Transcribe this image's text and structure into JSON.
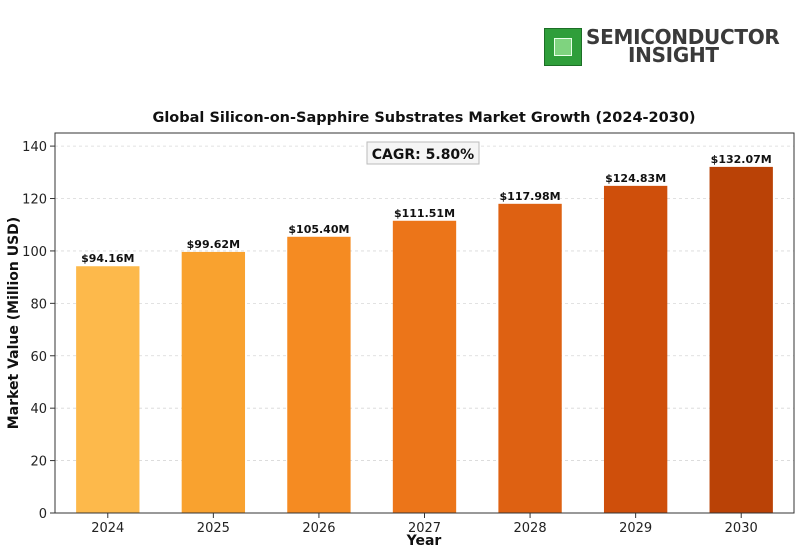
{
  "brand": {
    "line1": "SEMICONDUCTOR",
    "line2": "INSIGHT",
    "icon": "chip-icon",
    "color": "#3a3a3a"
  },
  "chart_data": {
    "type": "bar",
    "title": "Global Silicon-on-Sapphire Substrates Market Growth (2024-2030)",
    "xlabel": "Year",
    "ylabel": "Market Value (Million USD)",
    "categories": [
      "2024",
      "2025",
      "2026",
      "2027",
      "2028",
      "2029",
      "2030"
    ],
    "values": [
      94.16,
      99.62,
      105.4,
      111.51,
      117.98,
      124.83,
      132.07
    ],
    "data_labels": [
      "$94.16M",
      "$99.62M",
      "$105.40M",
      "$111.51M",
      "$117.98M",
      "$124.83M",
      "$132.07M"
    ],
    "colors": [
      "#FDB94B",
      "#F9A22F",
      "#F58B22",
      "#EC7519",
      "#DE6112",
      "#CF4F0B",
      "#BA4206"
    ],
    "ylim": [
      0,
      145
    ],
    "yticks": [
      0,
      20,
      40,
      60,
      80,
      100,
      120,
      140
    ],
    "grid": true,
    "annotation": "CAGR: 5.80%"
  }
}
